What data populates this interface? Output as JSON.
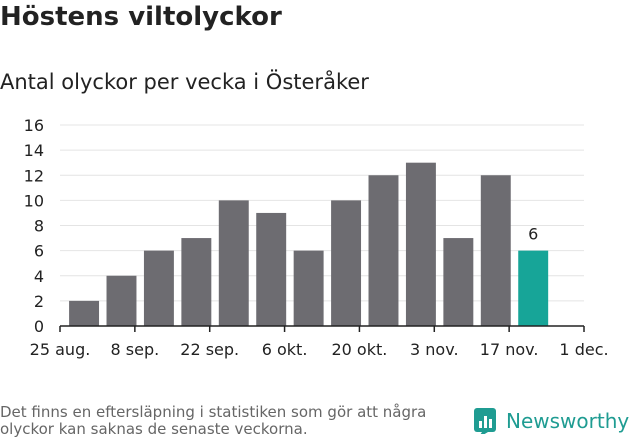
{
  "chart_data": {
    "type": "bar",
    "title": "Höstens viltolyckor",
    "subtitle": "Antal olyckor per vecka i Österåker",
    "weeks": [
      "2019-08-26",
      "2019-09-02",
      "2019-09-09",
      "2019-09-16",
      "2019-09-23",
      "2019-09-30",
      "2019-10-07",
      "2019-10-14",
      "2019-10-21",
      "2019-10-28",
      "2019-11-04",
      "2019-11-11",
      "2019-11-18"
    ],
    "values": [
      2,
      4,
      6,
      7,
      10,
      9,
      6,
      10,
      12,
      13,
      7,
      12,
      6
    ],
    "highlight_last": true,
    "highlight_label": "6",
    "x_ticks": [
      "25 aug.",
      "8 sep.",
      "22 sep.",
      "6 okt.",
      "20 okt.",
      "3 nov.",
      "17 nov.",
      "1 dec."
    ],
    "y_ticks": [
      "0",
      "2",
      "4",
      "6",
      "8",
      "10",
      "12",
      "14",
      "16"
    ],
    "ylim": [
      0,
      16
    ],
    "grid": true,
    "colors": {
      "bar": "#6d6c71",
      "highlight": "#17a598",
      "grid": "#e4e4e4"
    }
  },
  "footer": {
    "note": "Det finns en eftersläpning i statistiken som gör att några olyckor kan saknas de senaste veckorna.",
    "brand": "Newsworthy",
    "brand_icon": "bar-chart-icon"
  }
}
